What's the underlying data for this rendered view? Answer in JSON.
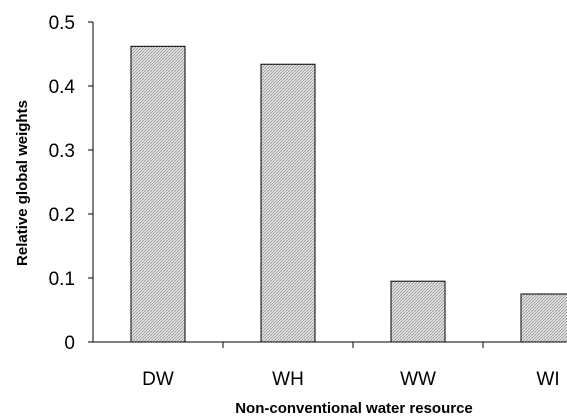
{
  "chart_data": {
    "type": "bar",
    "title": "",
    "xlabel": "Non-conventional water resource",
    "ylabel": "Relative global weights",
    "categories": [
      "DW",
      "WH",
      "WW",
      "WI"
    ],
    "values": [
      0.462,
      0.434,
      0.095,
      0.075
    ],
    "ylim": [
      0,
      0.5
    ],
    "yticks": [
      0,
      0.1,
      0.2,
      0.3,
      0.4,
      0.5
    ],
    "ytick_labels": [
      "0",
      "0.1",
      "0.2",
      "0.3",
      "0.4",
      "0.5"
    ],
    "grid": false,
    "legend": "none",
    "bar_fill": "#d4d4d4",
    "bar_stroke": "#000000"
  }
}
